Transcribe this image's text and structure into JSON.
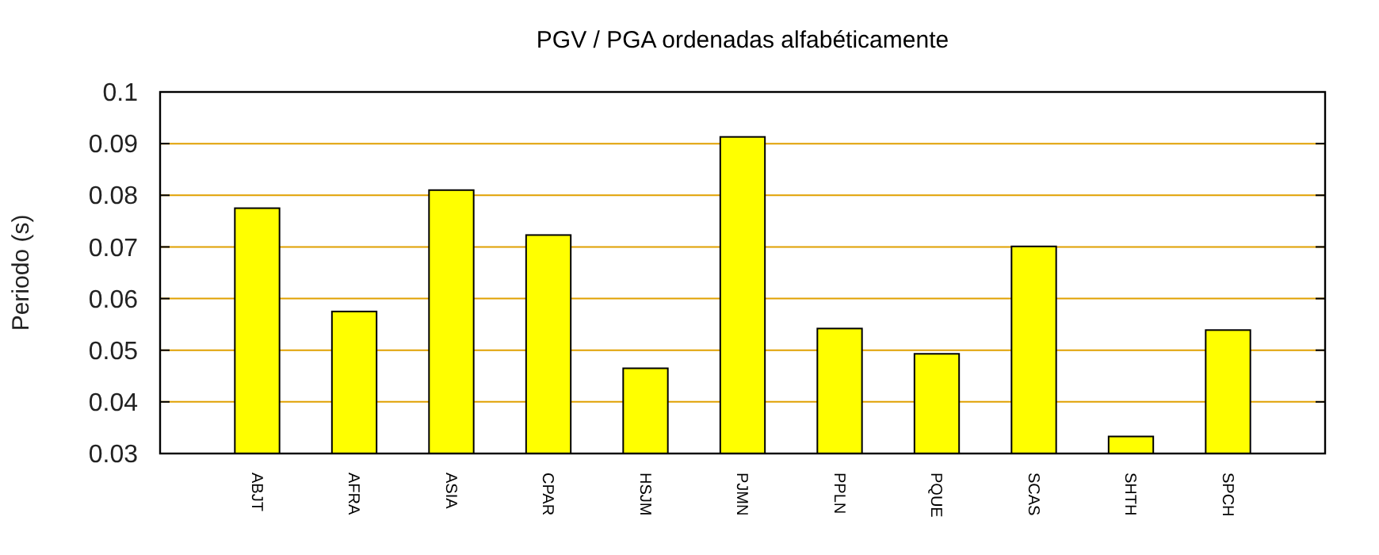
{
  "chart_data": {
    "type": "bar",
    "title": "PGV / PGA ordenadas alfabéticamente",
    "ylabel": "Periodo (s)",
    "categories": [
      "ABJT",
      "AFRA",
      "ASIA",
      "CPAR",
      "HSJM",
      "PJMN",
      "PPLN",
      "PQUE",
      "SCAS",
      "SHTH",
      "SPCH"
    ],
    "values": [
      0.0775,
      0.0575,
      0.081,
      0.0723,
      0.0465,
      0.0913,
      0.0542,
      0.0493,
      0.0701,
      0.0333,
      0.0539
    ],
    "color": "#ffff00",
    "ylim": [
      0.03,
      0.1
    ],
    "yticks": [
      0.03,
      0.04,
      0.05,
      0.06,
      0.07,
      0.08,
      0.09,
      0.1
    ],
    "grid": "y"
  }
}
